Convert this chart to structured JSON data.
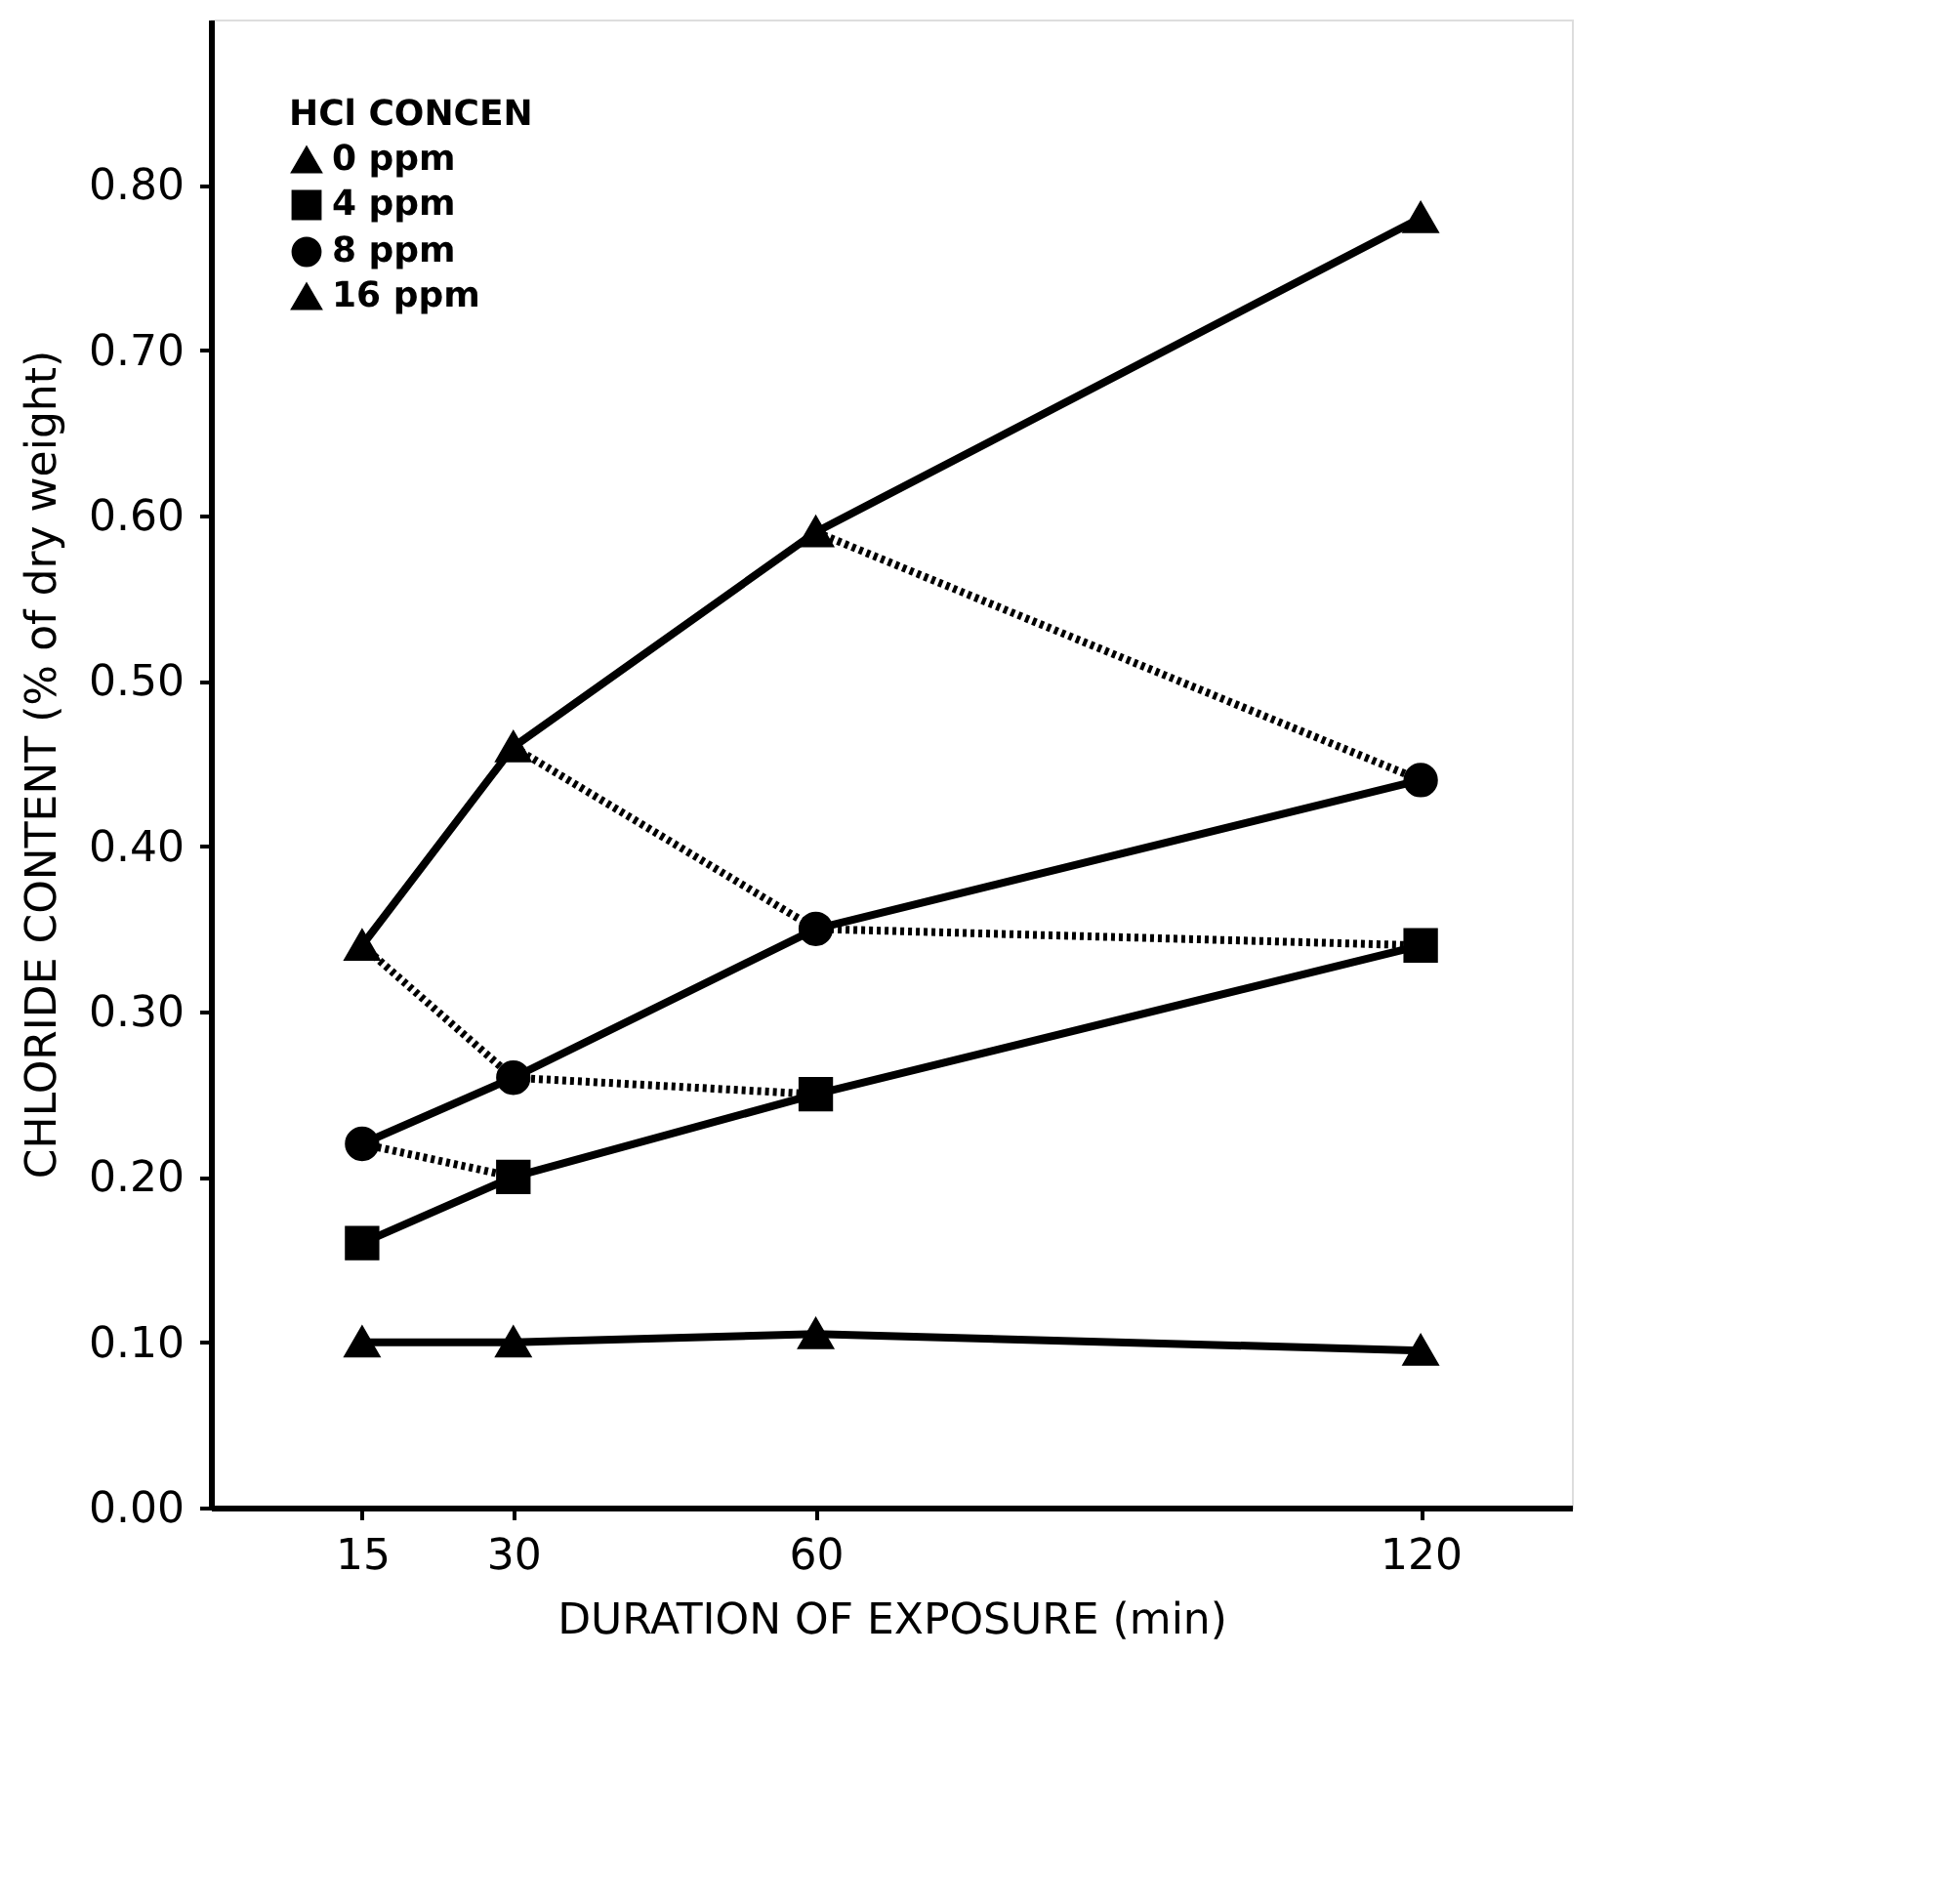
{
  "chart_data": {
    "type": "line",
    "xlabel": "DURATION OF EXPOSURE (min)",
    "ylabel": "CHLORIDE CONTENT (% of dry weight)",
    "legend_title": "HCl CONCEN",
    "x": [
      15,
      30,
      60,
      120
    ],
    "xlim": [
      0,
      135
    ],
    "xticks": [
      15,
      30,
      60,
      120
    ],
    "ylim": [
      0,
      0.9
    ],
    "yticks": [
      {
        "value": 0,
        "label": "0.00"
      },
      {
        "value": 0.1,
        "label": "0.10"
      },
      {
        "value": 0.2,
        "label": "0.20"
      },
      {
        "value": 0.3,
        "label": "0.30"
      },
      {
        "value": 0.4,
        "label": "0.40"
      },
      {
        "value": 0.5,
        "label": "0.50"
      },
      {
        "value": 0.6,
        "label": "0.60"
      },
      {
        "value": 0.7,
        "label": "0.70"
      },
      {
        "value": 0.8,
        "label": "0.80"
      }
    ],
    "grid": false,
    "legend": "top left",
    "line_style": "solid",
    "series": [
      {
        "name": "0 ppm",
        "color": "#000000",
        "marker": "triangle",
        "values": [
          0.1,
          0.1,
          0.105,
          0.095
        ]
      },
      {
        "name": "4 ppm",
        "color": "#000000",
        "marker": "square",
        "values": [
          0.16,
          0.2,
          0.25,
          0.34
        ]
      },
      {
        "name": "8 ppm",
        "color": "#000000",
        "marker": "circle",
        "values": [
          0.22,
          0.26,
          0.35,
          0.44
        ]
      },
      {
        "name": "16 ppm",
        "color": "#000000",
        "marker": "triangle",
        "values": [
          0.34,
          0.46,
          0.59,
          0.78
        ]
      },
      {
        "type": "line",
        "color": "#000000",
        "marker": "none",
        "line_style": "dotted",
        "x": [
          15,
          30
        ],
        "values": [
          0.22,
          0.2
        ]
      },
      {
        "type": "line",
        "color": "#000000",
        "marker": "none",
        "line_style": "dotted",
        "x": [
          15,
          30,
          60
        ],
        "values": [
          0.34,
          0.26,
          0.25
        ]
      },
      {
        "type": "line",
        "color": "#000000",
        "marker": "none",
        "line_style": "dotted",
        "x": [
          30,
          60,
          120
        ],
        "values": [
          0.46,
          0.35,
          0.34
        ]
      },
      {
        "type": "line",
        "color": "#000000",
        "marker": "none",
        "line_style": "dotted",
        "x": [
          60,
          120
        ],
        "values": [
          0.59,
          0.44
        ]
      }
    ]
  }
}
